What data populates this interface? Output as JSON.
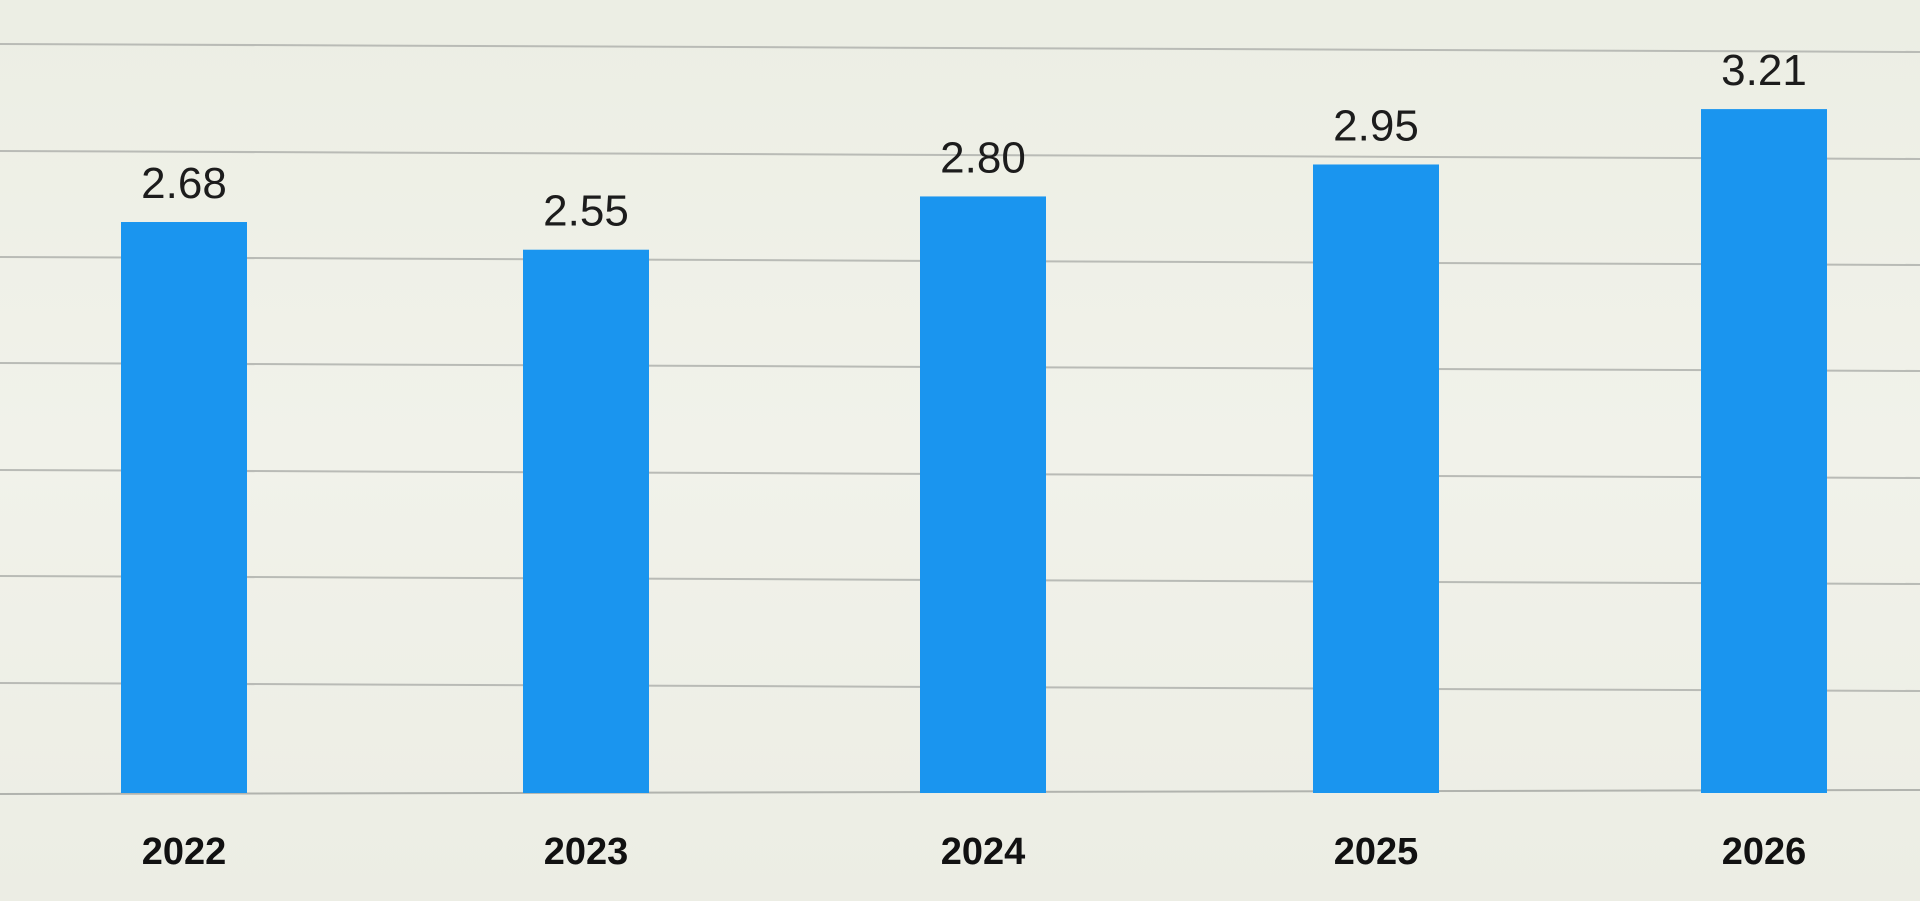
{
  "chart_data": {
    "type": "bar",
    "categories": [
      "2022",
      "2023",
      "2024",
      "2025",
      "2026"
    ],
    "values": [
      2.68,
      2.55,
      2.8,
      2.95,
      3.21
    ],
    "value_labels": [
      "2.68",
      "2.55",
      "2.80",
      "2.95",
      "3.21"
    ],
    "title": "",
    "xlabel": "",
    "ylabel": "",
    "ylim": [
      0,
      3.6
    ],
    "grid": true,
    "legend": "none",
    "colors": {
      "bar": "#1a95ef",
      "background": "#eef0e6",
      "grid": "#b9bbb6",
      "text": "#1c1c1c"
    }
  }
}
